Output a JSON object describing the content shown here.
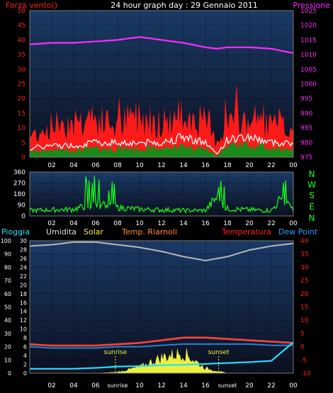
{
  "header": {
    "left": "Forza vento()",
    "title": "24 hour graph day : 29 Gennaio 2011",
    "right": "Pressione"
  },
  "legend": {
    "pioggia": "Pioggia",
    "umidita": "Umidita",
    "solar": "Solar",
    "temp_riarnoli": "Temp. Riarnoli",
    "temperatura": "Temperatura",
    "dew_point": "Dew Point"
  },
  "direction_labels": [
    "N",
    "W",
    "S",
    "E",
    "N"
  ],
  "annotations": {
    "sunrise": "sunrise",
    "sunset": "sunset"
  },
  "colors": {
    "wind_gust": "#ff1a1a",
    "wind_avg": "#ffffff",
    "wind_low": "#1a8a1a",
    "pressure": "#ff2bff",
    "direction": "#1aff1a",
    "humidity": "#b8b8b8",
    "temperature": "#ff3a3a",
    "dew_point": "#2a7fd8",
    "solar": "#eef03c",
    "rain": "#22e0ff",
    "panel_bg_top": "#1a3a66",
    "panel_bg_bottom": "#0c1020",
    "grid": "#000000"
  },
  "chart_data": [
    {
      "type": "line",
      "title": "24 hour graph day : 29 Gennaio 2011",
      "x_ticks": [
        "02",
        "04",
        "06",
        "08",
        "10",
        "12",
        "14",
        "16",
        "18",
        "20",
        "22",
        "00"
      ],
      "left_axis": {
        "label": "Forza vento()",
        "ticks": [
          0,
          5,
          10,
          15,
          20,
          25,
          30,
          35,
          40,
          45,
          50
        ],
        "ylim": [
          0,
          50
        ]
      },
      "right_axis": {
        "label": "Pressione",
        "ticks": [
          975,
          980,
          985,
          990,
          995,
          1000,
          1005,
          1010,
          1015,
          1020,
          1025
        ],
        "ylim": [
          975,
          1025
        ]
      },
      "x": [
        0,
        2,
        4,
        6,
        8,
        10,
        12,
        14,
        16,
        17,
        18,
        20,
        22,
        24
      ],
      "series": [
        {
          "name": "Pressione",
          "axis": "right",
          "values": [
            1013.5,
            1014,
            1014,
            1014.5,
            1015,
            1016,
            1015,
            1014,
            1012.5,
            1012,
            1012.5,
            1012.5,
            1012,
            1010.5
          ]
        },
        {
          "axis": "left",
          "values": [
            8,
            12,
            14,
            14,
            12,
            16,
            13,
            16,
            13,
            6,
            14,
            14,
            12,
            10
          ]
        },
        {
          "axis": "left",
          "values": [
            3,
            4,
            4,
            5,
            5,
            5,
            5,
            7,
            5,
            1,
            6,
            7,
            5,
            5
          ]
        },
        {
          "axis": "left",
          "values": [
            2,
            2.5,
            2.5,
            3,
            3,
            3,
            3,
            4,
            3,
            0.5,
            4,
            4.5,
            3,
            3
          ]
        }
      ]
    },
    {
      "type": "line",
      "x_ticks": [
        "02",
        "04",
        "06",
        "08",
        "10",
        "12",
        "14",
        "16",
        "18",
        "20",
        "22",
        "00"
      ],
      "left_axis": {
        "ticks": [
          0,
          90,
          180,
          270,
          360
        ],
        "ylim": [
          0,
          360
        ]
      },
      "right_axis": {
        "ticks": [
          "N",
          "W",
          "S",
          "E",
          "N"
        ]
      },
      "x": [
        0,
        2,
        4,
        5,
        6,
        7,
        8,
        10,
        12,
        14,
        16,
        17,
        18,
        20,
        22,
        23,
        24
      ],
      "series": [
        {
          "values": [
            45,
            50,
            55,
            80,
            90,
            85,
            70,
            55,
            50,
            45,
            45,
            150,
            60,
            50,
            45,
            150,
            45
          ]
        }
      ]
    },
    {
      "type": "line",
      "x_ticks": [
        "02",
        "04",
        "06",
        "sunrise",
        "10",
        "12",
        "14",
        "16",
        "sunset",
        "20",
        "22",
        "00"
      ],
      "left_axis": {
        "ticks": [
          0,
          10,
          20,
          30,
          40,
          50,
          60,
          70,
          80,
          90,
          100
        ],
        "ylim": [
          0,
          100
        ]
      },
      "left_axis_inner": {
        "ticks": [
          0,
          2,
          4,
          6,
          8,
          10,
          12,
          14,
          16,
          18,
          20,
          22,
          24,
          26,
          28,
          30
        ],
        "ylim": [
          0,
          30
        ]
      },
      "right_axis": {
        "ticks": [
          -10,
          -5,
          0,
          5,
          10,
          15,
          20,
          25,
          30,
          35,
          40
        ],
        "ylim": [
          -10,
          40
        ]
      },
      "x": [
        0,
        2,
        4,
        6,
        8,
        10,
        12,
        14,
        16,
        18,
        20,
        22,
        24
      ],
      "series": [
        {
          "name": "Umidita",
          "axis": "left",
          "values": [
            96,
            97,
            99,
            99,
            97,
            95,
            92,
            88,
            85,
            88,
            93,
            96,
            98
          ]
        },
        {
          "name": "Temperatura",
          "axis": "right",
          "values": [
            1,
            0.5,
            0.5,
            0.5,
            1,
            1.5,
            2.5,
            3.5,
            3.5,
            3,
            2.5,
            2,
            1.5
          ]
        },
        {
          "name": "Temp. Riarnoli",
          "axis": "right",
          "values": [
            0.8,
            0.3,
            0.3,
            0.3,
            0.8,
            1.3,
            2.3,
            3.3,
            3.3,
            2.8,
            2.3,
            1.8,
            1.3
          ]
        },
        {
          "name": "Dew Point",
          "axis": "right",
          "values": [
            0,
            -0.5,
            -0.5,
            -0.5,
            0,
            0,
            0.5,
            1,
            1,
            1,
            1,
            0.5,
            0.5
          ]
        },
        {
          "name": "Solar",
          "axis": "left",
          "values": [
            0,
            0,
            0,
            0,
            1,
            5,
            13,
            17,
            4,
            0,
            0,
            0,
            0
          ]
        },
        {
          "name": "Pioggia",
          "axis": "left_inner",
          "values": [
            1,
            1,
            1,
            1.2,
            1.5,
            1.6,
            1.8,
            1.9,
            2.1,
            2.3,
            2.5,
            2.8,
            7
          ]
        }
      ]
    }
  ]
}
